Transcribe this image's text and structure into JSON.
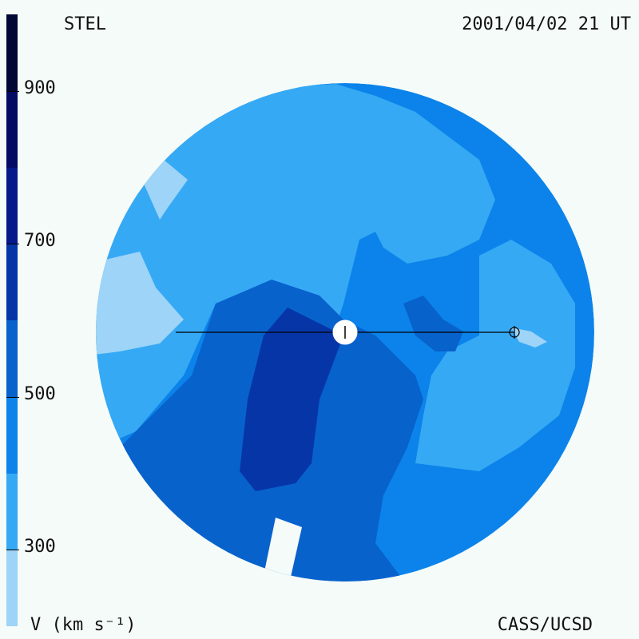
{
  "header": {
    "observatory": "STEL",
    "timestamp": "2001/04/02 21 UT"
  },
  "footer": {
    "units_label": "V (km s⁻¹)",
    "credit": "CASS/UCSD"
  },
  "colors": {
    "background": "#f4fbf8",
    "band_200_300": "#9dd4f7",
    "band_300_400": "#36a9f5",
    "band_400_500": "#0b83ea",
    "band_500_600": "#0862cc",
    "band_600_700": "#0635a8",
    "band_700_800": "#05188c",
    "band_800_900": "#040b62",
    "band_900_1000": "#020834"
  },
  "chart_data": {
    "type": "heatmap",
    "title": "STEL",
    "timestamp": "2001/04/02 21 UT",
    "colorbar": {
      "label": "V (km s⁻¹)",
      "range": [
        200,
        1000
      ],
      "ticks": [
        900,
        700,
        500,
        300
      ],
      "levels": [
        200,
        300,
        400,
        500,
        600,
        700,
        800,
        900,
        1000
      ]
    },
    "regions_approx_kms": {
      "background": 400,
      "light_patches": 300,
      "very_light_patches": 250,
      "south_band": 500,
      "core_south": 600
    },
    "markers": [
      "sun",
      "earth"
    ]
  }
}
